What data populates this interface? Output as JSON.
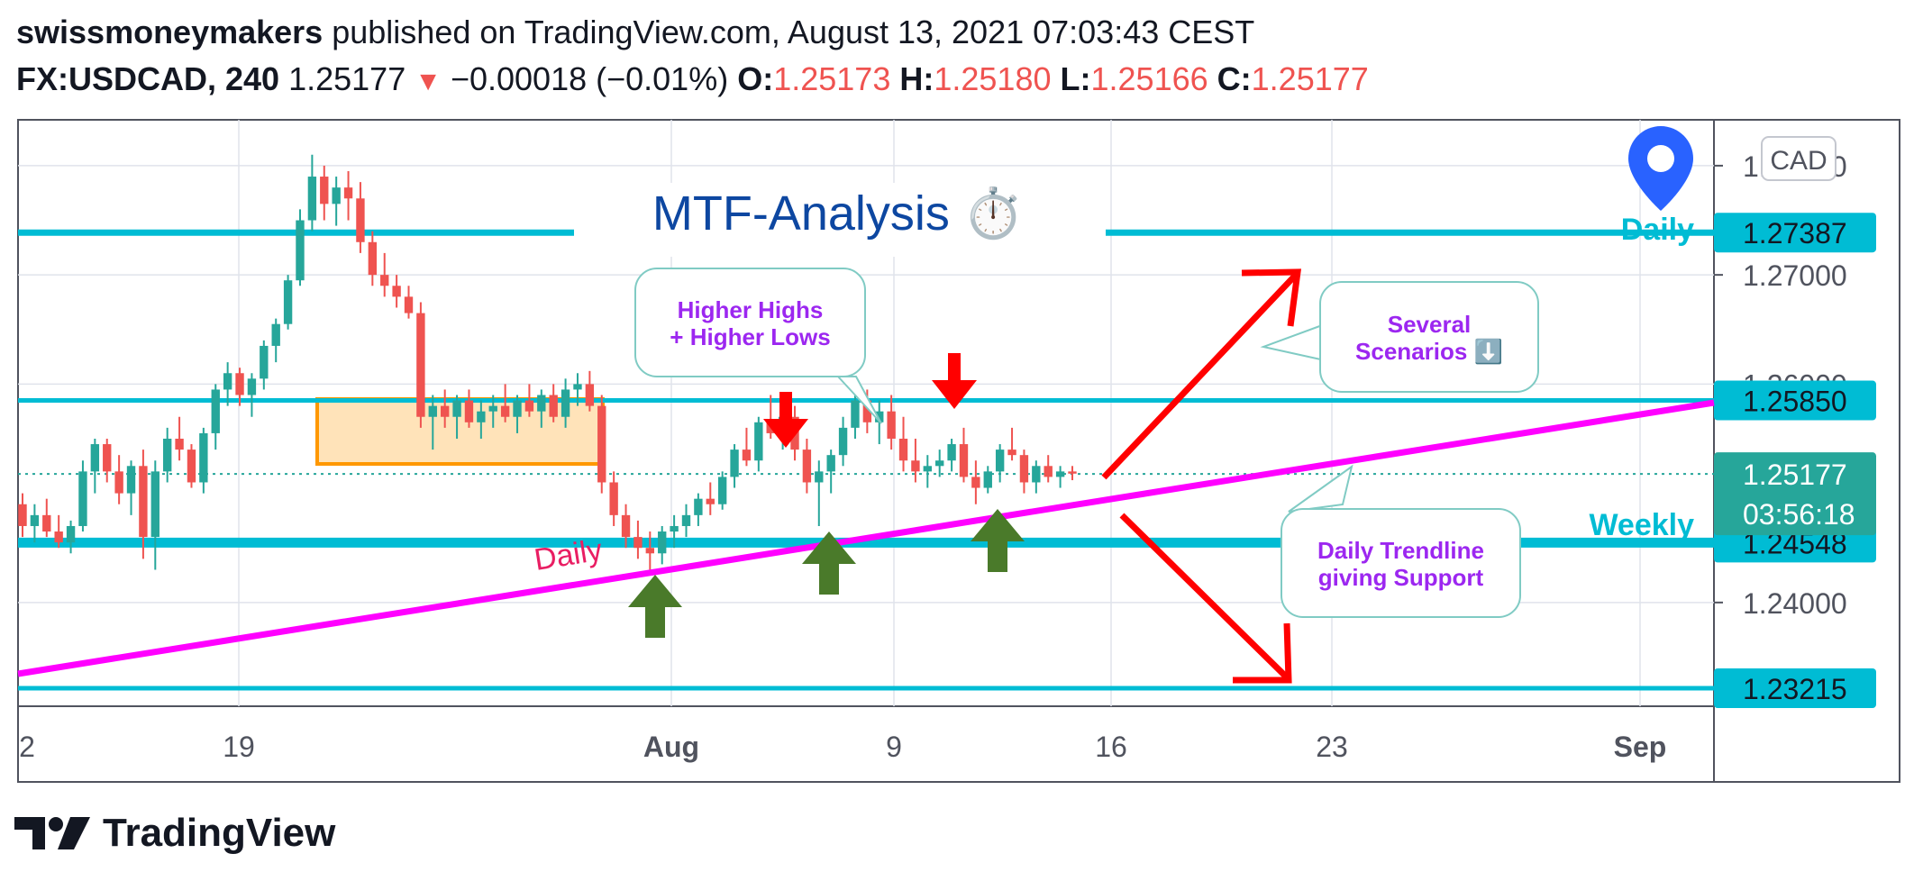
{
  "header": {
    "author": "swissmoneymakers",
    "published_text": "published on TradingView.com, August 13, 2021 07:03:43 CEST",
    "symbol": "FX:USDCAD, 240",
    "last_price": "1.25177",
    "change_arrow": "▼",
    "change": "−0.00018 (−0.01%)",
    "o_label": "O:",
    "o_value": "1.25173",
    "h_label": "H:",
    "h_value": "1.25180",
    "l_label": "L:",
    "l_value": "1.25166",
    "c_label": "C:",
    "c_value": "1.25177"
  },
  "footer": {
    "brand": "TradingView",
    "logo_icon": "tradingview-logo-icon"
  },
  "chart_data": {
    "type": "candlestick",
    "currency": "CAD",
    "title": "MTF-Analysis",
    "title_icon": "⏱️",
    "x_ticks": [
      "2",
      "19",
      "Aug",
      "9",
      "16",
      "23",
      "Sep"
    ],
    "y_ticks": [
      "1.28000",
      "1.27000",
      "1.26000",
      "1.24000"
    ],
    "ylim": [
      1.2305,
      1.2842
    ],
    "horizontal_levels": [
      {
        "value": 1.27387,
        "label": "1.27387",
        "color": "#00bcd4"
      },
      {
        "value": 1.2585,
        "label": "1.25850",
        "color": "#00bcd4"
      },
      {
        "value": 1.24548,
        "label": "1.24548",
        "color": "#00bcd4"
      },
      {
        "value": 1.23215,
        "label": "1.23215",
        "color": "#00bcd4"
      }
    ],
    "current_price": {
      "value": 1.25177,
      "label": "1.25177",
      "countdown": "03:56:18",
      "color": "#26a69a"
    },
    "level_labels": {
      "daily": "Daily",
      "weekly": "Weekly",
      "trendline": "Daily"
    },
    "callouts": [
      {
        "id": "hh-hl",
        "lines": [
          "Higher Highs",
          "+ Higher Lows"
        ]
      },
      {
        "id": "scenarios",
        "lines": [
          "Several",
          "Scenarios ⬇️"
        ]
      },
      {
        "id": "trendline-support",
        "lines": [
          "Daily Trendline",
          "giving Support"
        ]
      }
    ],
    "colors": {
      "bull": "#26a69a",
      "bear": "#ef5350",
      "trendline": "#ff00ff",
      "level": "#00bcd4",
      "range_box": "#ff9800",
      "callout_text": "#9c27f0",
      "title": "#0d47a1",
      "down_arrow": "#ff0000",
      "up_arrow": "#4a7a2a",
      "location_pin": "#2962ff"
    },
    "candles": [
      [
        1.249,
        1.25,
        1.246,
        1.247
      ],
      [
        1.247,
        1.249,
        1.2455,
        1.248
      ],
      [
        1.248,
        1.2495,
        1.246,
        1.2465
      ],
      [
        1.2465,
        1.248,
        1.245,
        1.2455
      ],
      [
        1.2455,
        1.2475,
        1.2445,
        1.247
      ],
      [
        1.247,
        1.253,
        1.2465,
        1.252
      ],
      [
        1.252,
        1.255,
        1.25,
        1.2545
      ],
      [
        1.2545,
        1.255,
        1.251,
        1.252
      ],
      [
        1.252,
        1.2535,
        1.249,
        1.25
      ],
      [
        1.25,
        1.253,
        1.248,
        1.2525
      ],
      [
        1.2525,
        1.254,
        1.244,
        1.246
      ],
      [
        1.246,
        1.253,
        1.243,
        1.252
      ],
      [
        1.252,
        1.256,
        1.251,
        1.255
      ],
      [
        1.255,
        1.257,
        1.253,
        1.254
      ],
      [
        1.254,
        1.2545,
        1.2505,
        1.251
      ],
      [
        1.251,
        1.256,
        1.25,
        1.2555
      ],
      [
        1.2555,
        1.26,
        1.254,
        1.2595
      ],
      [
        1.2595,
        1.262,
        1.258,
        1.261
      ],
      [
        1.261,
        1.2615,
        1.258,
        1.259
      ],
      [
        1.259,
        1.261,
        1.257,
        1.2605
      ],
      [
        1.2605,
        1.264,
        1.2595,
        1.2635
      ],
      [
        1.2635,
        1.266,
        1.262,
        1.2655
      ],
      [
        1.2655,
        1.27,
        1.265,
        1.2695
      ],
      [
        1.2695,
        1.276,
        1.269,
        1.275
      ],
      [
        1.275,
        1.281,
        1.274,
        1.279
      ],
      [
        1.279,
        1.28,
        1.275,
        1.2765
      ],
      [
        1.2765,
        1.279,
        1.2745,
        1.278
      ],
      [
        1.278,
        1.2795,
        1.275,
        1.277
      ],
      [
        1.277,
        1.2785,
        1.272,
        1.273
      ],
      [
        1.273,
        1.274,
        1.269,
        1.27
      ],
      [
        1.27,
        1.272,
        1.268,
        1.269
      ],
      [
        1.269,
        1.27,
        1.267,
        1.268
      ],
      [
        1.268,
        1.269,
        1.266,
        1.2665
      ],
      [
        1.2665,
        1.2675,
        1.256,
        1.257
      ],
      [
        1.257,
        1.259,
        1.254,
        1.258
      ],
      [
        1.258,
        1.2595,
        1.256,
        1.257
      ],
      [
        1.257,
        1.259,
        1.255,
        1.2585
      ],
      [
        1.2585,
        1.2595,
        1.256,
        1.2565
      ],
      [
        1.2565,
        1.2585,
        1.255,
        1.2575
      ],
      [
        1.2575,
        1.259,
        1.256,
        1.258
      ],
      [
        1.258,
        1.26,
        1.2565,
        1.257
      ],
      [
        1.257,
        1.259,
        1.2555,
        1.2585
      ],
      [
        1.2585,
        1.26,
        1.257,
        1.2575
      ],
      [
        1.2575,
        1.2595,
        1.256,
        1.259
      ],
      [
        1.259,
        1.26,
        1.2565,
        1.257
      ],
      [
        1.257,
        1.2605,
        1.256,
        1.2595
      ],
      [
        1.2595,
        1.261,
        1.258,
        1.26
      ],
      [
        1.26,
        1.2612,
        1.2575,
        1.258
      ],
      [
        1.258,
        1.259,
        1.25,
        1.251
      ],
      [
        1.251,
        1.252,
        1.247,
        1.248
      ],
      [
        1.248,
        1.249,
        1.245,
        1.246
      ],
      [
        1.246,
        1.2475,
        1.244,
        1.245
      ],
      [
        1.245,
        1.2465,
        1.243,
        1.2445
      ],
      [
        1.2445,
        1.247,
        1.2435,
        1.2465
      ],
      [
        1.2465,
        1.248,
        1.245,
        1.247
      ],
      [
        1.247,
        1.249,
        1.246,
        1.248
      ],
      [
        1.248,
        1.25,
        1.247,
        1.2495
      ],
      [
        1.2495,
        1.251,
        1.248,
        1.249
      ],
      [
        1.249,
        1.252,
        1.2485,
        1.2515
      ],
      [
        1.2515,
        1.2545,
        1.2505,
        1.254
      ],
      [
        1.254,
        1.256,
        1.2525,
        1.253
      ],
      [
        1.253,
        1.257,
        1.252,
        1.2565
      ],
      [
        1.2565,
        1.259,
        1.255,
        1.2555
      ],
      [
        1.2555,
        1.2575,
        1.254,
        1.257
      ],
      [
        1.257,
        1.258,
        1.253,
        1.254
      ],
      [
        1.254,
        1.255,
        1.25,
        1.251
      ],
      [
        1.251,
        1.253,
        1.247,
        1.252
      ],
      [
        1.252,
        1.254,
        1.25,
        1.2535
      ],
      [
        1.2535,
        1.257,
        1.2525,
        1.256
      ],
      [
        1.256,
        1.259,
        1.255,
        1.2585
      ],
      [
        1.2585,
        1.2595,
        1.2555,
        1.2565
      ],
      [
        1.2565,
        1.2585,
        1.2545,
        1.2575
      ],
      [
        1.2575,
        1.259,
        1.254,
        1.255
      ],
      [
        1.255,
        1.257,
        1.252,
        1.253
      ],
      [
        1.253,
        1.255,
        1.251,
        1.252
      ],
      [
        1.252,
        1.2535,
        1.2505,
        1.2525
      ],
      [
        1.2525,
        1.254,
        1.2515,
        1.253
      ],
      [
        1.253,
        1.255,
        1.252,
        1.2545
      ],
      [
        1.2545,
        1.256,
        1.251,
        1.2515
      ],
      [
        1.2515,
        1.253,
        1.249,
        1.2505
      ],
      [
        1.2505,
        1.2525,
        1.25,
        1.252
      ],
      [
        1.252,
        1.2545,
        1.251,
        1.254
      ],
      [
        1.254,
        1.256,
        1.253,
        1.2535
      ],
      [
        1.2535,
        1.254,
        1.25,
        1.251
      ],
      [
        1.251,
        1.253,
        1.25,
        1.2525
      ],
      [
        1.2525,
        1.2535,
        1.251,
        1.2515
      ],
      [
        1.2515,
        1.2525,
        1.2505,
        1.252
      ],
      [
        1.252,
        1.2525,
        1.2512,
        1.2518
      ]
    ]
  }
}
